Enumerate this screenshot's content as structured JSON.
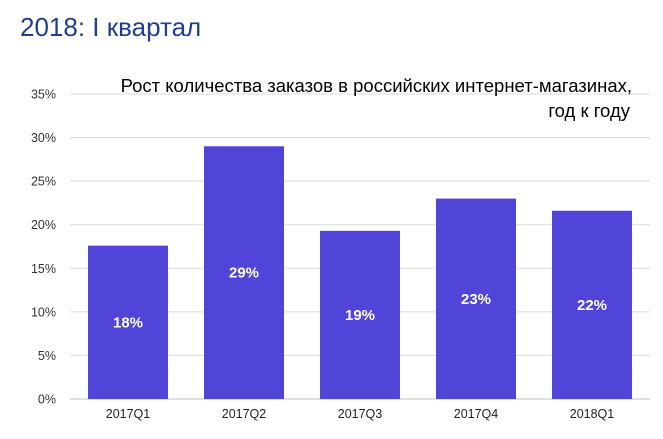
{
  "page": {
    "heading": "2018: I квартал"
  },
  "chart_data": {
    "type": "bar",
    "title_lines": [
      "Рост количества заказов в российских интернет-магазинах,",
      "год к году"
    ],
    "categories": [
      "2017Q1",
      "2017Q2",
      "2017Q3",
      "2017Q4",
      "2018Q1"
    ],
    "values": [
      17.6,
      29.0,
      19.3,
      23.0,
      21.6
    ],
    "data_labels": [
      "18%",
      "29%",
      "19%",
      "23%",
      "22%"
    ],
    "y_ticks": [
      "0%",
      "5%",
      "10%",
      "15%",
      "20%",
      "25%",
      "30%",
      "35%"
    ],
    "ylim": [
      0,
      35
    ],
    "xlabel": "",
    "ylabel": "",
    "grid": true,
    "legend": "none",
    "colors": {
      "bar": "#5045d8",
      "grid": "#d9d9d9",
      "heading": "#1f3f8f"
    }
  }
}
